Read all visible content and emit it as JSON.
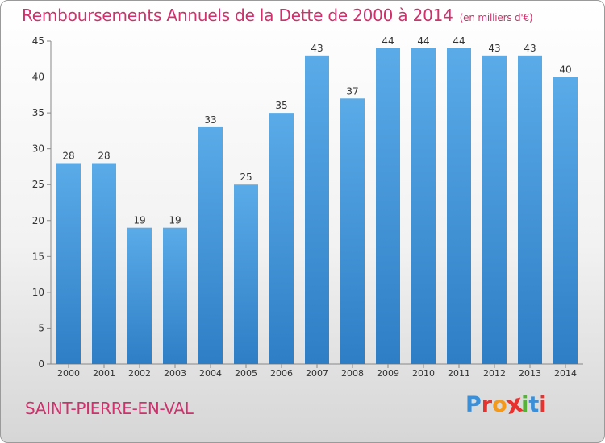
{
  "header": {
    "title": "Remboursements Annuels de la Dette de 2000 à 2014",
    "unit": "(en milliers d'€)"
  },
  "footer": {
    "commune": "SAINT-PIERRE-EN-VAL",
    "logo_text": "Proxiti",
    "logo_colors": [
      "#3a8fd8",
      "#e8322f",
      "#f39a1c",
      "#e8322f",
      "#57b13b",
      "#3a8fd8",
      "#e8322f"
    ]
  },
  "colors": {
    "title": "#d0306b",
    "bar_light": "#5aabe8",
    "bar_dark": "#2e7ec6",
    "label": "#333333"
  },
  "chart_data": {
    "type": "bar",
    "title": "Remboursements Annuels de la Dette de 2000 à 2014",
    "categories": [
      "2000",
      "2001",
      "2002",
      "2003",
      "2004",
      "2005",
      "2006",
      "2007",
      "2008",
      "2009",
      "2010",
      "2011",
      "2012",
      "2013",
      "2014"
    ],
    "values": [
      28,
      28,
      19,
      19,
      33,
      25,
      35,
      43,
      37,
      44,
      44,
      44,
      43,
      43,
      40
    ],
    "data_labels": [
      "28",
      "28",
      "19",
      "19",
      "33",
      "25",
      "35",
      "43",
      "37",
      "44",
      "44",
      "44",
      "43",
      "43",
      "40"
    ],
    "yticks": [
      "0",
      "5",
      "10",
      "15",
      "20",
      "25",
      "30",
      "35",
      "40",
      "45"
    ],
    "ylim": [
      0,
      45
    ],
    "xlabel": "",
    "ylabel": "",
    "grid": false,
    "legend": "none"
  }
}
